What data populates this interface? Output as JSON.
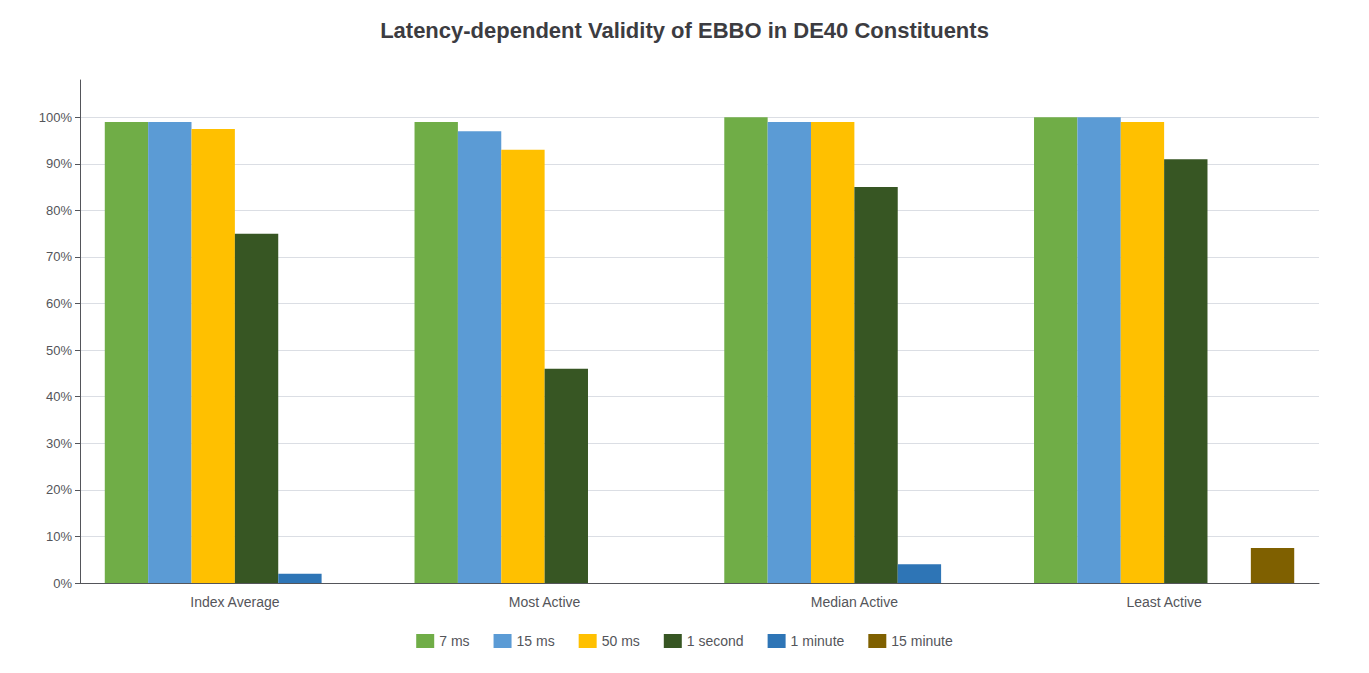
{
  "chart_data": {
    "type": "bar",
    "title": "Latency-dependent Validity of EBBO in DE40 Constituents",
    "categories": [
      "Index Average",
      "Most Active",
      "Median Active",
      "Least Active"
    ],
    "series": [
      {
        "name": "7 ms",
        "color": "#70ad47",
        "values": [
          0.99,
          0.99,
          1.0,
          1.0
        ]
      },
      {
        "name": "15 ms",
        "color": "#5b9bd5",
        "values": [
          0.99,
          0.97,
          0.99,
          1.0
        ]
      },
      {
        "name": "50 ms",
        "color": "#ffc000",
        "values": [
          0.975,
          0.93,
          0.99,
          0.99
        ]
      },
      {
        "name": "1 second",
        "color": "#375623",
        "values": [
          0.75,
          0.46,
          0.85,
          0.91
        ]
      },
      {
        "name": "1 minute",
        "color": "#2e75b6",
        "values": [
          0.02,
          0.0,
          0.04,
          0.0
        ]
      },
      {
        "name": "15 minute",
        "color": "#7f6000",
        "values": [
          0.0,
          0.0,
          0.0,
          0.075
        ]
      }
    ],
    "ylim": [
      0,
      1.08
    ],
    "yticks": [
      {
        "value": 0.0,
        "label": "0%"
      },
      {
        "value": 0.1,
        "label": "10%"
      },
      {
        "value": 0.2,
        "label": "20%"
      },
      {
        "value": 0.3,
        "label": "30%"
      },
      {
        "value": 0.4,
        "label": "40%"
      },
      {
        "value": 0.5,
        "label": "50%"
      },
      {
        "value": 0.6,
        "label": "60%"
      },
      {
        "value": 0.7,
        "label": "70%"
      },
      {
        "value": 0.8,
        "label": "80%"
      },
      {
        "value": 0.9,
        "label": "90%"
      },
      {
        "value": 1.0,
        "label": "100%"
      }
    ],
    "grid": true,
    "legend": "bottom"
  }
}
